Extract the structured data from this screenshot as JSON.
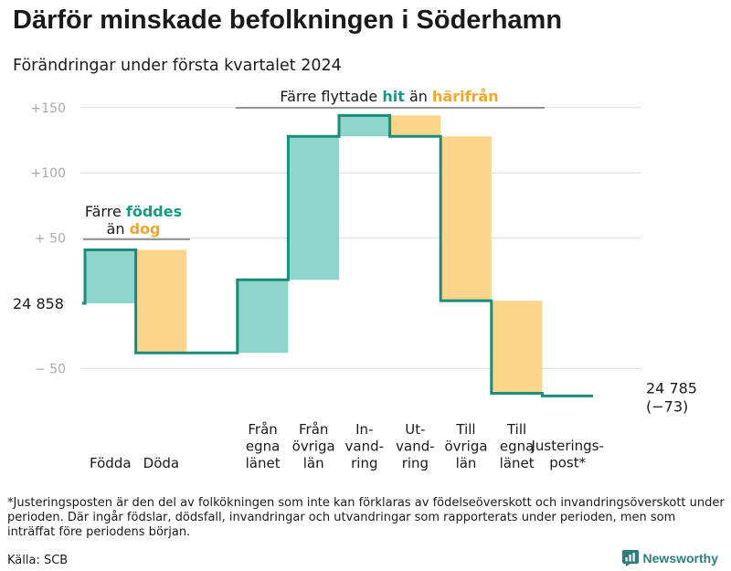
{
  "header": {
    "title": "Därför minskade befolkningen i Söderhamn",
    "subtitle": "Förändringar under första kvartalet 2024"
  },
  "chart_data": {
    "type": "waterfall",
    "baseline": 24858,
    "baseline_label": "24  858",
    "ylim": [
      -75,
      160
    ],
    "yticks": [
      {
        "value": 150,
        "label": "+150"
      },
      {
        "value": 100,
        "label": "+100"
      },
      {
        "value": 50,
        "label": "+  50"
      },
      {
        "value": -50,
        "label": "−  50"
      }
    ],
    "steps": [
      {
        "label": [
          "Födda"
        ],
        "change": 41,
        "kind": "in"
      },
      {
        "label": [
          "Döda"
        ],
        "change": -79,
        "kind": "out"
      },
      {
        "label": [],
        "change": 0,
        "kind": "gap"
      },
      {
        "label": [
          "Från",
          "egna",
          "länet"
        ],
        "change": 56,
        "kind": "in"
      },
      {
        "label": [
          "Från",
          "övriga",
          "län"
        ],
        "change": 110,
        "kind": "in"
      },
      {
        "label": [
          "In-",
          "vand-",
          "ring"
        ],
        "change": 16,
        "kind": "in"
      },
      {
        "label": [
          "Ut-",
          "vand-",
          "ring"
        ],
        "change": -16,
        "kind": "out"
      },
      {
        "label": [
          "Till",
          "övriga",
          "län"
        ],
        "change": -126,
        "kind": "out"
      },
      {
        "label": [
          "Till",
          "egna",
          "länet"
        ],
        "change": -71,
        "kind": "out"
      },
      {
        "label": [
          "Justerings-",
          "post*"
        ],
        "change": -2,
        "kind": "adjust"
      }
    ],
    "end_value_label": "24 785",
    "end_change_label": "(−73)",
    "annotations": {
      "births": {
        "line1_prefix": "Färre ",
        "line1_highlight": "föddes",
        "line2_prefix": "än ",
        "line2_highlight": "dog"
      },
      "migration": {
        "prefix": "Färre flyttade ",
        "highlight1": "hit",
        "middle": " än ",
        "highlight2": "härifrån"
      }
    },
    "grid": true
  },
  "colors": {
    "in_fill": "#8ed5cb",
    "out_fill": "#fad58b",
    "step_line": "#1a8c79",
    "in_text": "#159a87",
    "out_text": "#f2a62b",
    "grid": "#dddddd",
    "axis_text": "#aaaaaa"
  },
  "footer": {
    "footnote": "*Justeringsposten är den del av folkökningen som inte kan förklaras av födelseöverskott och invandringsöverskott under perioden. Där ingår födslar, dödsfall, invandringar och utvandringar som rapporterats under perioden, men som inträffat före periodens början.",
    "source": "Källa: SCB",
    "brand": "Newsworthy",
    "brand_icon": "newsworthy-logo-icon"
  }
}
